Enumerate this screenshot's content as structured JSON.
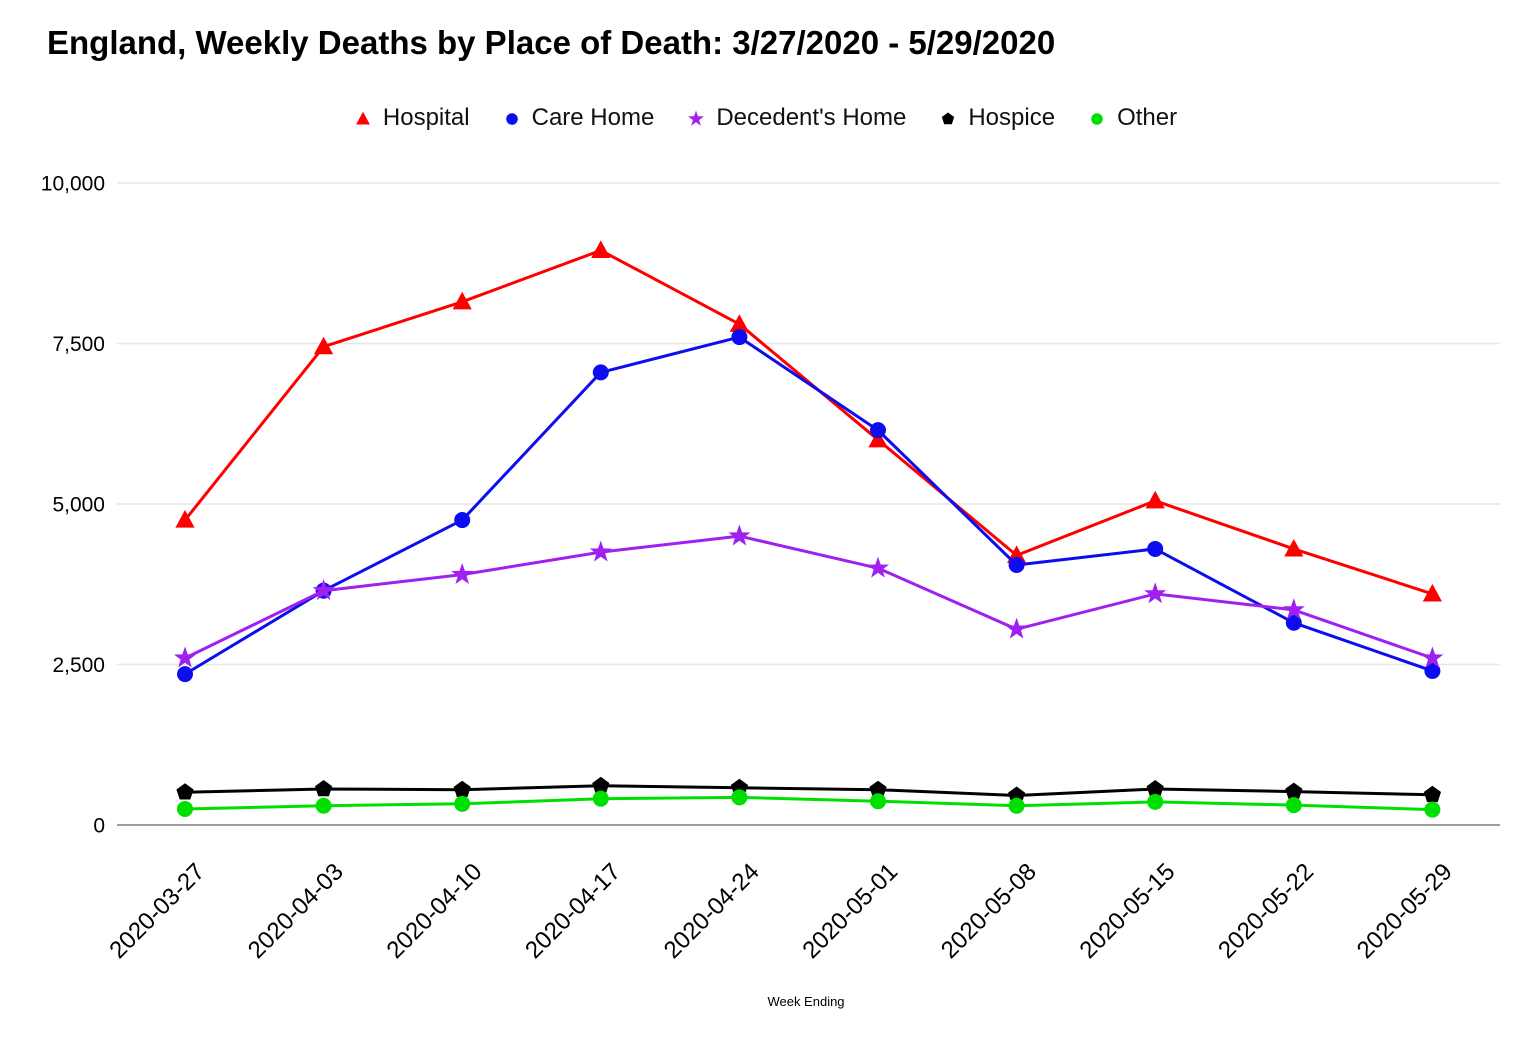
{
  "title": "England, Weekly Deaths by Place of Death: 3/27/2020 - 5/29/2020",
  "chart_data": {
    "type": "line",
    "title": "England, Weekly Deaths by Place of Death: 3/27/2020 - 5/29/2020",
    "xlabel": "Week Ending",
    "ylabel": "",
    "x": [
      "2020-03-27",
      "2020-04-03",
      "2020-04-10",
      "2020-04-17",
      "2020-04-24",
      "2020-05-01",
      "2020-05-08",
      "2020-05-15",
      "2020-05-22",
      "2020-05-29"
    ],
    "series": [
      {
        "name": "Hospital",
        "marker": "triangle",
        "color": "#FF0000",
        "values": [
          4750,
          7450,
          8150,
          8950,
          7800,
          6000,
          4200,
          5050,
          4300,
          3600
        ]
      },
      {
        "name": "Care Home",
        "marker": "circle",
        "color": "#0D0DF0",
        "values": [
          2350,
          3650,
          4750,
          7050,
          7600,
          6150,
          4050,
          4300,
          3150,
          2400
        ]
      },
      {
        "name": "Decedent's Home",
        "marker": "star",
        "color": "#A020F0",
        "values": [
          2600,
          3650,
          3900,
          4250,
          4500,
          4000,
          3050,
          3600,
          3350,
          2600
        ]
      },
      {
        "name": "Hospice",
        "marker": "pentagon",
        "color": "#000000",
        "values": [
          510,
          560,
          550,
          610,
          580,
          550,
          460,
          560,
          520,
          470
        ]
      },
      {
        "name": "Other",
        "marker": "circle",
        "color": "#00E000",
        "values": [
          250,
          300,
          330,
          410,
          430,
          370,
          300,
          360,
          310,
          240
        ]
      }
    ],
    "ylim": [
      0,
      10000
    ],
    "yticks": [
      0,
      2500,
      5000,
      7500,
      10000
    ],
    "ytick_labels": [
      "0",
      "2,500",
      "5,000",
      "7,500",
      "10,000"
    ],
    "grid": true,
    "legend_position": "top",
    "colors": {
      "grid": "#E6E6E6",
      "axis": "#9E9E9E",
      "text": "#000000"
    }
  }
}
